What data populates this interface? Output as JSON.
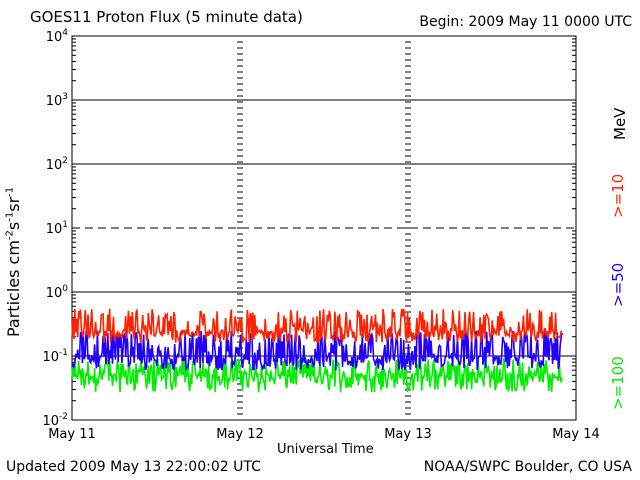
{
  "header": {
    "title": "GOES11 Proton Flux (5 minute data)",
    "begin": "Begin: 2009 May 11 0000 UTC"
  },
  "footer": {
    "updated": "Updated 2009 May 13 22:00:02 UTC",
    "credit": "NOAA/SWPC Boulder, CO USA"
  },
  "axes": {
    "xlabel": "Universal Time",
    "ylabel_parts": [
      "Particles cm",
      "-2",
      "s",
      "-1",
      "sr",
      "-1"
    ]
  },
  "side_labels": {
    "unit": "MeV",
    "ge10": ">=10",
    "ge50": ">=50",
    "ge100": ">=100"
  },
  "colors": {
    "ge10": "#ff2200",
    "ge50": "#2200ff",
    "ge100": "#00ee00",
    "axis": "#000000"
  },
  "chart_data": {
    "type": "line",
    "title": "GOES11 Proton Flux (5 minute data)",
    "xlabel": "Universal Time",
    "ylabel": "Particles cm-2s-1sr-1",
    "yscale": "log",
    "ylim": [
      0.01,
      10000
    ],
    "y_ticks": [
      {
        "value": 0.01,
        "base": "10",
        "exp": "-2"
      },
      {
        "value": 0.1,
        "base": "10",
        "exp": "-1"
      },
      {
        "value": 1,
        "base": "10",
        "exp": "0"
      },
      {
        "value": 10,
        "base": "10",
        "exp": "1"
      },
      {
        "value": 100,
        "base": "10",
        "exp": "2"
      },
      {
        "value": 1000,
        "base": "10",
        "exp": "3"
      },
      {
        "value": 10000,
        "base": "10",
        "exp": "4"
      }
    ],
    "x_ticks": [
      "May 11",
      "May 12",
      "May 13",
      "May 14"
    ],
    "xlim_days": [
      0,
      3
    ],
    "data_end_day": 2.917,
    "grid": "solid horizontal lines at decades, dashed at 10^1, dashed vertical at day boundaries",
    "legend": "right side, rotated",
    "series": [
      {
        "name": ">=10 MeV",
        "color": "#ff2200",
        "baseline": 0.22,
        "spike_max": 0.55,
        "floor": 0.16
      },
      {
        "name": ">=50 MeV",
        "color": "#2200ff",
        "baseline": 0.085,
        "spike_max": 0.25,
        "floor": 0.06
      },
      {
        "name": ">=100 MeV",
        "color": "#00ee00",
        "baseline": 0.045,
        "spike_max": 0.09,
        "floor": 0.027
      }
    ]
  }
}
